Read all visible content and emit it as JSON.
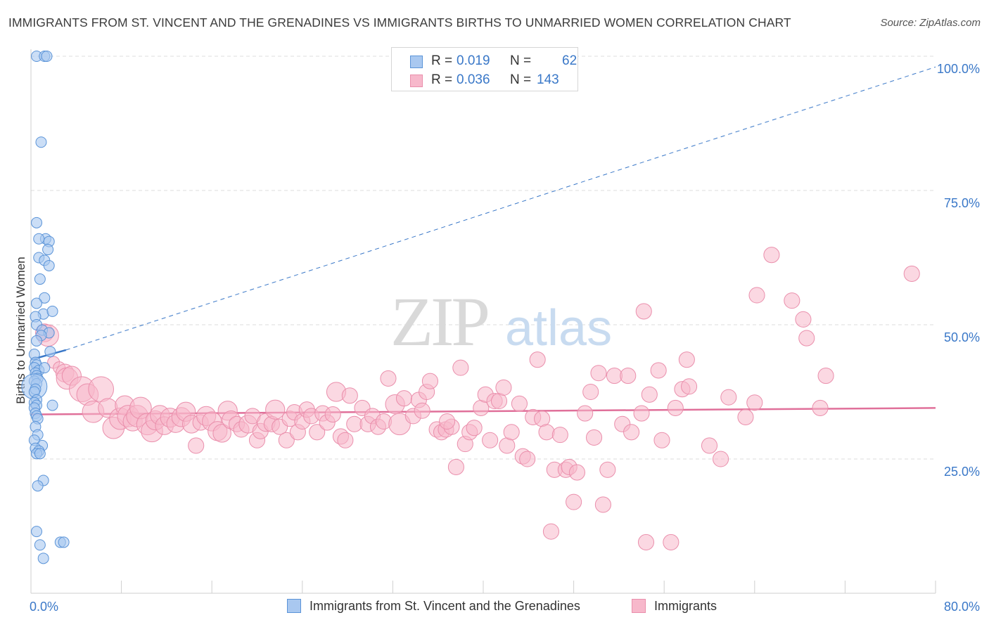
{
  "title": "IMMIGRANTS FROM ST. VINCENT AND THE GRENADINES VS IMMIGRANTS BIRTHS TO UNMARRIED WOMEN CORRELATION CHART",
  "source": "Source: ZipAtlas.com",
  "watermark": {
    "zip": "ZIP",
    "atlas": "atlas"
  },
  "legend": {
    "series1": {
      "r_label": "R =",
      "r_value": "0.019",
      "n_label": "N =",
      "n_value": "62"
    },
    "series2": {
      "r_label": "R =",
      "r_value": "0.036",
      "n_label": "N =",
      "n_value": "143"
    }
  },
  "colors": {
    "blue_fill": "#a9c8f0",
    "blue_stroke": "#5b94d8",
    "blue_line": "#3a78c8",
    "pink_fill": "#f7b8cb",
    "pink_stroke": "#ea8fac",
    "pink_line": "#e0709a",
    "tick_label": "#3a78c8"
  },
  "chart_data": {
    "type": "scatter",
    "title": "IMMIGRANTS FROM ST. VINCENT AND THE GRENADINES VS IMMIGRANTS BIRTHS TO UNMARRIED WOMEN CORRELATION CHART",
    "xlabel": "",
    "ylabel": "Births to Unmarried Women",
    "xlim": [
      0,
      80
    ],
    "ylim": [
      0,
      100
    ],
    "x_tick_labels": [
      "0.0%",
      "80.0%"
    ],
    "y_ticks": [
      25,
      50,
      75,
      100
    ],
    "y_tick_labels": [
      "25.0%",
      "50.0%",
      "75.0%",
      "100.0%"
    ],
    "grid": true,
    "legend_position": "top-center",
    "series": [
      {
        "name": "Immigrants from St. Vincent and the Grenadines",
        "r": 0.019,
        "n": 62,
        "trend_solid": [
          [
            0,
            43.5
          ],
          [
            3.1,
            45.3
          ]
        ],
        "trend_dashed": [
          [
            3.1,
            45.3
          ],
          [
            80,
            98
          ]
        ],
        "points": [
          [
            0.5,
            100,
            1
          ],
          [
            1.2,
            100,
            1
          ],
          [
            1.4,
            100,
            1
          ],
          [
            0.9,
            84,
            1
          ],
          [
            0.5,
            69,
            1
          ],
          [
            1.3,
            66,
            1
          ],
          [
            1.6,
            65.5,
            1
          ],
          [
            0.7,
            66,
            1
          ],
          [
            1.5,
            64,
            1
          ],
          [
            0.7,
            62.5,
            1
          ],
          [
            1.2,
            62,
            1
          ],
          [
            1.6,
            61,
            1
          ],
          [
            0.8,
            58.5,
            1
          ],
          [
            1.2,
            55,
            1
          ],
          [
            0.5,
            54,
            1
          ],
          [
            1.1,
            52,
            1
          ],
          [
            1.9,
            52.5,
            1
          ],
          [
            0.4,
            51.5,
            1
          ],
          [
            0.5,
            50,
            1
          ],
          [
            1.0,
            49,
            1
          ],
          [
            1.6,
            48.5,
            1
          ],
          [
            0.9,
            48,
            1
          ],
          [
            0.5,
            47,
            1
          ],
          [
            1.7,
            45,
            1
          ],
          [
            0.3,
            44.5,
            1
          ],
          [
            0.4,
            43,
            1
          ],
          [
            0.5,
            42.5,
            1
          ],
          [
            0.3,
            42,
            1
          ],
          [
            0.7,
            41.5,
            1
          ],
          [
            1.2,
            42,
            1
          ],
          [
            0.4,
            41,
            1
          ],
          [
            0.5,
            40.5,
            1
          ],
          [
            0.6,
            40,
            1
          ],
          [
            0.3,
            39.5,
            1
          ],
          [
            0.5,
            39,
            1
          ],
          [
            0.3,
            38.5,
            2.4
          ],
          [
            0.4,
            38,
            1
          ],
          [
            0.3,
            37.5,
            1
          ],
          [
            0.5,
            36,
            1
          ],
          [
            0.3,
            35.5,
            1
          ],
          [
            0.5,
            35,
            1
          ],
          [
            1.9,
            35,
            1
          ],
          [
            0.3,
            34.5,
            1
          ],
          [
            0.4,
            33.5,
            1
          ],
          [
            0.5,
            33,
            1
          ],
          [
            0.6,
            32.5,
            1
          ],
          [
            0.4,
            31,
            1
          ],
          [
            0.6,
            29.5,
            1
          ],
          [
            0.3,
            28.5,
            1
          ],
          [
            1.0,
            27.5,
            1
          ],
          [
            0.4,
            27,
            1
          ],
          [
            0.7,
            26.5,
            1
          ],
          [
            0.5,
            26,
            1
          ],
          [
            0.8,
            26,
            1
          ],
          [
            1.1,
            21,
            1
          ],
          [
            0.6,
            20,
            1
          ],
          [
            0.5,
            11.5,
            1
          ],
          [
            0.8,
            9,
            1
          ],
          [
            2.6,
            9.5,
            1
          ],
          [
            2.9,
            9.5,
            1
          ],
          [
            1.1,
            6.5,
            1
          ]
        ]
      },
      {
        "name": "Immigrants",
        "r": 0.036,
        "n": 143,
        "trend_solid": [
          [
            0,
            33.3
          ],
          [
            80,
            34.5
          ]
        ],
        "points": [
          [
            1.2,
            48.5,
            1.5
          ],
          [
            1.5,
            48,
            1.8
          ],
          [
            2.0,
            43,
            1
          ],
          [
            2.5,
            42,
            1
          ],
          [
            3.0,
            41,
            1.5
          ],
          [
            3.2,
            40,
            1.8
          ],
          [
            3.6,
            40.5,
            1.6
          ],
          [
            4.5,
            38,
            2.1
          ],
          [
            5.0,
            37,
            1.8
          ],
          [
            5.5,
            33.8,
            1.8
          ],
          [
            6.2,
            38,
            2.1
          ],
          [
            6.8,
            34.5,
            1.6
          ],
          [
            7.3,
            30.8,
            1.8
          ],
          [
            7.9,
            32.5,
            1.8
          ],
          [
            8.3,
            35,
            1.6
          ],
          [
            8.6,
            33,
            1.8
          ],
          [
            9.0,
            32,
            1.6
          ],
          [
            9.4,
            33,
            1.8
          ],
          [
            9.7,
            34.5,
            1.8
          ],
          [
            10.3,
            31.5,
            1.8
          ],
          [
            10.7,
            30.2,
            1.8
          ],
          [
            11.0,
            32.2,
            1.6
          ],
          [
            11.4,
            33.2,
            1.6
          ],
          [
            11.8,
            31.2,
            1.5
          ],
          [
            12.3,
            32.7,
            1.6
          ],
          [
            12.8,
            31.6,
            1.5
          ],
          [
            13.3,
            32.8,
            1.6
          ],
          [
            13.7,
            33.8,
            1.6
          ],
          [
            14.2,
            31.5,
            1.5
          ],
          [
            14.6,
            27.5,
            1.3
          ],
          [
            15.0,
            31.8,
            1.3
          ],
          [
            15.5,
            33.0,
            1.6
          ],
          [
            16.0,
            32.0,
            1.6
          ],
          [
            16.5,
            30.2,
            1.6
          ],
          [
            16.9,
            29.8,
            1.5
          ],
          [
            17.4,
            34.0,
            1.6
          ],
          [
            17.7,
            32.3,
            1.5
          ],
          [
            18.2,
            31.5,
            1.3
          ],
          [
            18.6,
            30.5,
            1.3
          ],
          [
            19.2,
            31.5,
            1.5
          ],
          [
            19.6,
            33.0,
            1.3
          ],
          [
            20.0,
            28.5,
            1.3
          ],
          [
            20.3,
            30.2,
            1.3
          ],
          [
            20.8,
            31.8,
            1.5
          ],
          [
            21.3,
            31.5,
            1.3
          ],
          [
            21.6,
            34.2,
            1.6
          ],
          [
            22.0,
            31.0,
            1.3
          ],
          [
            22.6,
            28.5,
            1.3
          ],
          [
            22.9,
            32.5,
            1.3
          ],
          [
            23.3,
            33.7,
            1.3
          ],
          [
            23.6,
            30.0,
            1.3
          ],
          [
            24.0,
            32.0,
            1.3
          ],
          [
            24.4,
            34.2,
            1.3
          ],
          [
            24.8,
            33.0,
            1.3
          ],
          [
            25.3,
            30.0,
            1.3
          ],
          [
            25.8,
            33.5,
            1.3
          ],
          [
            26.2,
            31.8,
            1.3
          ],
          [
            26.7,
            33.3,
            1.3
          ],
          [
            27.0,
            37.5,
            1.6
          ],
          [
            27.4,
            29.2,
            1.3
          ],
          [
            27.8,
            28.5,
            1.3
          ],
          [
            28.2,
            36.8,
            1.3
          ],
          [
            28.6,
            31.5,
            1.3
          ],
          [
            29.3,
            34.5,
            1.3
          ],
          [
            29.8,
            31.5,
            1.3
          ],
          [
            30.2,
            33.0,
            1.3
          ],
          [
            30.7,
            31.0,
            1.3
          ],
          [
            31.2,
            32.0,
            1.3
          ],
          [
            31.6,
            40.0,
            1.3
          ],
          [
            32.2,
            35.2,
            1.6
          ],
          [
            32.6,
            31.5,
            1.8
          ],
          [
            33.0,
            36.3,
            1.3
          ],
          [
            33.8,
            33.0,
            1.3
          ],
          [
            34.3,
            36.0,
            1.3
          ],
          [
            34.6,
            34.0,
            1.3
          ],
          [
            35.0,
            37.5,
            1.3
          ],
          [
            35.3,
            39.5,
            1.3
          ],
          [
            35.9,
            30.5,
            1.3
          ],
          [
            36.3,
            30.0,
            1.3
          ],
          [
            36.7,
            30.5,
            1.3
          ],
          [
            37.2,
            31.0,
            1.3
          ],
          [
            37.6,
            23.5,
            1.3
          ],
          [
            38.0,
            42.0,
            1.3
          ],
          [
            38.4,
            27.8,
            1.3
          ],
          [
            38.8,
            30.0,
            1.3
          ],
          [
            39.2,
            30.8,
            1.3
          ],
          [
            39.8,
            34.5,
            1.3
          ],
          [
            40.2,
            37.0,
            1.3
          ],
          [
            40.6,
            28.5,
            1.3
          ],
          [
            41.0,
            35.8,
            1.3
          ],
          [
            41.4,
            35.8,
            1.3
          ],
          [
            41.8,
            38.3,
            1.3
          ],
          [
            42.1,
            27.5,
            1.3
          ],
          [
            42.5,
            30.0,
            1.3
          ],
          [
            43.2,
            35.3,
            1.3
          ],
          [
            43.5,
            25.5,
            1.3
          ],
          [
            43.9,
            25.0,
            1.3
          ],
          [
            44.4,
            32.8,
            1.3
          ],
          [
            44.8,
            43.5,
            1.3
          ],
          [
            45.2,
            32.5,
            1.3
          ],
          [
            45.6,
            30.0,
            1.3
          ],
          [
            46.0,
            11.5,
            1.3
          ],
          [
            46.3,
            23.0,
            1.3
          ],
          [
            46.8,
            29.5,
            1.3
          ],
          [
            47.3,
            23.0,
            1.3
          ],
          [
            47.6,
            23.5,
            1.3
          ],
          [
            48.0,
            17.0,
            1.3
          ],
          [
            48.3,
            22.5,
            1.3
          ],
          [
            49.0,
            33.5,
            1.3
          ],
          [
            49.5,
            37.5,
            1.3
          ],
          [
            49.8,
            29.0,
            1.3
          ],
          [
            50.2,
            41.0,
            1.3
          ],
          [
            50.6,
            16.5,
            1.3
          ],
          [
            51.0,
            23.0,
            1.3
          ],
          [
            51.6,
            40.5,
            1.3
          ],
          [
            52.3,
            31.5,
            1.3
          ],
          [
            52.8,
            40.5,
            1.3
          ],
          [
            53.1,
            30.0,
            1.3
          ],
          [
            54.0,
            33.5,
            1.3
          ],
          [
            54.4,
            9.5,
            1.3
          ],
          [
            54.7,
            37.0,
            1.3
          ],
          [
            55.5,
            41.5,
            1.3
          ],
          [
            55.8,
            28.5,
            1.3
          ],
          [
            56.6,
            9.5,
            1.3
          ],
          [
            57.0,
            34.5,
            1.3
          ],
          [
            57.6,
            38.0,
            1.3
          ],
          [
            58.0,
            43.5,
            1.3
          ],
          [
            58.2,
            38.5,
            1.3
          ],
          [
            60.0,
            27.5,
            1.3
          ],
          [
            61.0,
            25.0,
            1.3
          ],
          [
            61.7,
            36.5,
            1.3
          ],
          [
            63.2,
            32.8,
            1.3
          ],
          [
            64.0,
            35.5,
            1.3
          ],
          [
            64.2,
            55.5,
            1.3
          ],
          [
            65.5,
            63.0,
            1.3
          ],
          [
            67.3,
            54.5,
            1.3
          ],
          [
            68.3,
            51.0,
            1.3
          ],
          [
            68.6,
            47.5,
            1.3
          ],
          [
            69.8,
            34.5,
            1.3
          ],
          [
            70.3,
            40.5,
            1.3
          ],
          [
            77.9,
            59.5,
            1.3
          ],
          [
            54.2,
            52.5,
            1.3
          ],
          [
            36.8,
            32.0,
            1.3
          ]
        ]
      }
    ]
  }
}
